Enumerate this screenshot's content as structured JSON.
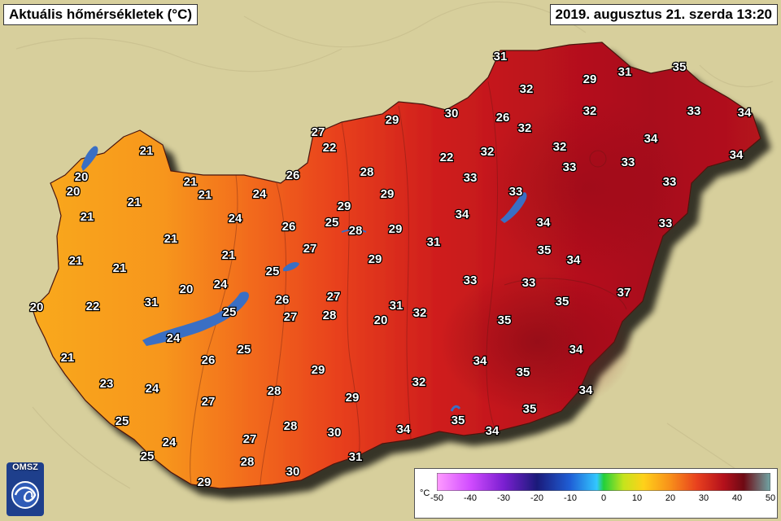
{
  "header": {
    "title": "Aktuális hőmérsékletek (°C)",
    "datetime": "2019. augusztus 21. szerda 13:20"
  },
  "logo": {
    "text": "OMSZ"
  },
  "legend": {
    "unit": "°C",
    "ticks": [
      "-50",
      "-40",
      "-30",
      "-20",
      "-10",
      "0",
      "10",
      "20",
      "30",
      "40",
      "50"
    ]
  },
  "colors": {
    "background": "#d7cf9c",
    "cool": "#f7a31a",
    "mid": "#ef4a1e",
    "hot": "#c3111c",
    "hottest": "#9a0d18",
    "lake": "#3a6fc4"
  },
  "stations": [
    {
      "value": "31"
    },
    {
      "value": "29"
    },
    {
      "value": "31"
    },
    {
      "value": "35"
    },
    {
      "value": "32"
    },
    {
      "value": "30"
    },
    {
      "value": "26"
    },
    {
      "value": "32"
    },
    {
      "value": "32"
    },
    {
      "value": "33"
    },
    {
      "value": "34"
    },
    {
      "value": "29"
    },
    {
      "value": "27"
    },
    {
      "value": "22"
    },
    {
      "value": "22"
    },
    {
      "value": "32"
    },
    {
      "value": "32"
    },
    {
      "value": "34"
    },
    {
      "value": "34"
    },
    {
      "value": "21"
    },
    {
      "value": "28"
    },
    {
      "value": "33"
    },
    {
      "value": "33"
    },
    {
      "value": "33"
    },
    {
      "value": "20"
    },
    {
      "value": "26"
    },
    {
      "value": "20"
    },
    {
      "value": "21"
    },
    {
      "value": "21"
    },
    {
      "value": "24"
    },
    {
      "value": "29"
    },
    {
      "value": "33"
    },
    {
      "value": "33"
    },
    {
      "value": "21"
    },
    {
      "value": "29"
    },
    {
      "value": "21"
    },
    {
      "value": "24"
    },
    {
      "value": "26"
    },
    {
      "value": "25"
    },
    {
      "value": "34"
    },
    {
      "value": "34"
    },
    {
      "value": "33"
    },
    {
      "value": "28"
    },
    {
      "value": "29"
    },
    {
      "value": "21"
    },
    {
      "value": "31"
    },
    {
      "value": "27"
    },
    {
      "value": "35"
    },
    {
      "value": "21"
    },
    {
      "value": "21"
    },
    {
      "value": "34"
    },
    {
      "value": "29"
    },
    {
      "value": "21"
    },
    {
      "value": "25"
    },
    {
      "value": "20"
    },
    {
      "value": "24"
    },
    {
      "value": "33"
    },
    {
      "value": "33"
    },
    {
      "value": "26"
    },
    {
      "value": "27"
    },
    {
      "value": "37"
    },
    {
      "value": "20"
    },
    {
      "value": "22"
    },
    {
      "value": "35"
    },
    {
      "value": "31"
    },
    {
      "value": "20"
    },
    {
      "value": "25"
    },
    {
      "value": "27"
    },
    {
      "value": "28"
    },
    {
      "value": "31"
    },
    {
      "value": "32"
    },
    {
      "value": "35"
    },
    {
      "value": "24"
    },
    {
      "value": "25"
    },
    {
      "value": "34"
    },
    {
      "value": "21"
    },
    {
      "value": "26"
    },
    {
      "value": "34"
    },
    {
      "value": "29"
    },
    {
      "value": "35"
    },
    {
      "value": "23"
    },
    {
      "value": "24"
    },
    {
      "value": "32"
    },
    {
      "value": "34"
    },
    {
      "value": "27"
    },
    {
      "value": "28"
    },
    {
      "value": "29"
    },
    {
      "value": "35"
    },
    {
      "value": "25"
    },
    {
      "value": "28"
    },
    {
      "value": "30"
    },
    {
      "value": "34"
    },
    {
      "value": "35"
    },
    {
      "value": "34"
    },
    {
      "value": "24"
    },
    {
      "value": "27"
    },
    {
      "value": "25"
    },
    {
      "value": "28"
    },
    {
      "value": "31"
    },
    {
      "value": "30"
    },
    {
      "value": "29"
    }
  ]
}
